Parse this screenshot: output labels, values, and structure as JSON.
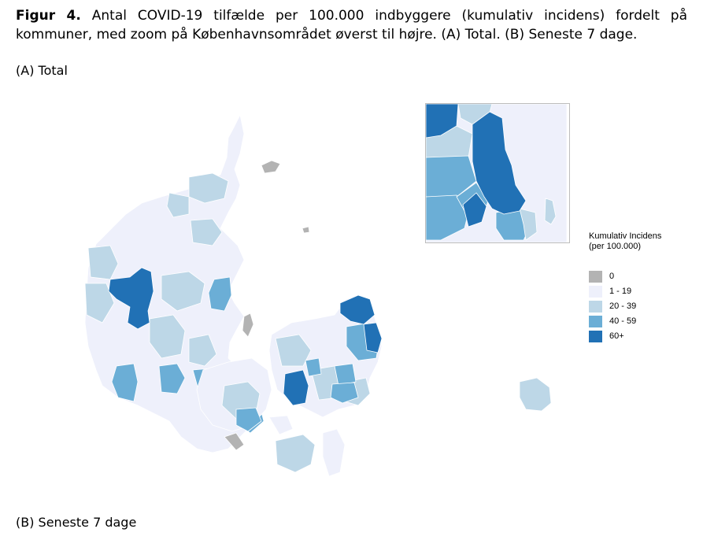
{
  "caption": {
    "figure_label": "Figur 4.",
    "text": "Antal COVID-19 tilfælde per 100.000 indbyggere (kumulativ incidens) fordelt på kommuner, med zoom på Københavnsområdet øverst til højre. (A) Total. (B) Seneste 7 dage."
  },
  "panels": [
    {
      "label": "(A) Total"
    },
    {
      "label": "(B) Seneste 7 dage"
    }
  ],
  "legend": {
    "title": "Kumulativ Incidens (per 100.000)",
    "items": [
      {
        "label": "0",
        "color": "#b3b3b3"
      },
      {
        "label": "1 - 19",
        "color": "#eef0fb"
      },
      {
        "label": "20 - 39",
        "color": "#bdd7e7"
      },
      {
        "label": "40 - 59",
        "color": "#6baed6"
      },
      {
        "label": "60+",
        "color": "#2171b5"
      }
    ]
  }
}
